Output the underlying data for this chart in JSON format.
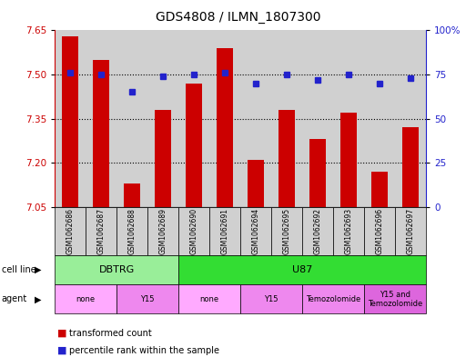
{
  "title": "GDS4808 / ILMN_1807300",
  "samples": [
    "GSM1062686",
    "GSM1062687",
    "GSM1062688",
    "GSM1062689",
    "GSM1062690",
    "GSM1062691",
    "GSM1062694",
    "GSM1062695",
    "GSM1062692",
    "GSM1062693",
    "GSM1062696",
    "GSM1062697"
  ],
  "bar_values": [
    7.63,
    7.55,
    7.13,
    7.38,
    7.47,
    7.59,
    7.21,
    7.38,
    7.28,
    7.37,
    7.17,
    7.32
  ],
  "dot_values": [
    76,
    75,
    65,
    74,
    75,
    76,
    70,
    75,
    72,
    75,
    70,
    73
  ],
  "ylim_left": [
    7.05,
    7.65
  ],
  "ylim_right": [
    0,
    100
  ],
  "yticks_left": [
    7.05,
    7.2,
    7.35,
    7.5,
    7.65
  ],
  "yticks_right": [
    0,
    25,
    50,
    75,
    100
  ],
  "bar_color": "#cc0000",
  "dot_color": "#2222cc",
  "bar_base": 7.05,
  "cell_line_groups": [
    {
      "label": "DBTRG",
      "start": 0,
      "end": 4,
      "color": "#99ee99"
    },
    {
      "label": "U87",
      "start": 4,
      "end": 12,
      "color": "#33dd33"
    }
  ],
  "agent_groups": [
    {
      "label": "none",
      "start": 0,
      "end": 2,
      "color": "#ffaaff"
    },
    {
      "label": "Y15",
      "start": 2,
      "end": 4,
      "color": "#ee88ee"
    },
    {
      "label": "none",
      "start": 4,
      "end": 6,
      "color": "#ffaaff"
    },
    {
      "label": "Y15",
      "start": 6,
      "end": 8,
      "color": "#ee88ee"
    },
    {
      "label": "Temozolomide",
      "start": 8,
      "end": 10,
      "color": "#ee88ee"
    },
    {
      "label": "Y15 and\nTemozolomide",
      "start": 10,
      "end": 12,
      "color": "#dd66dd"
    }
  ],
  "legend_items": [
    {
      "label": "transformed count",
      "color": "#cc0000"
    },
    {
      "label": "percentile rank within the sample",
      "color": "#2222cc"
    }
  ],
  "dotted_pcts": [
    75,
    50,
    25
  ],
  "grid_color": "black",
  "plot_bg": "#ffffff",
  "sample_bg": "#d0d0d0",
  "ylabel_left_color": "#cc0000",
  "ylabel_right_color": "#2222cc"
}
